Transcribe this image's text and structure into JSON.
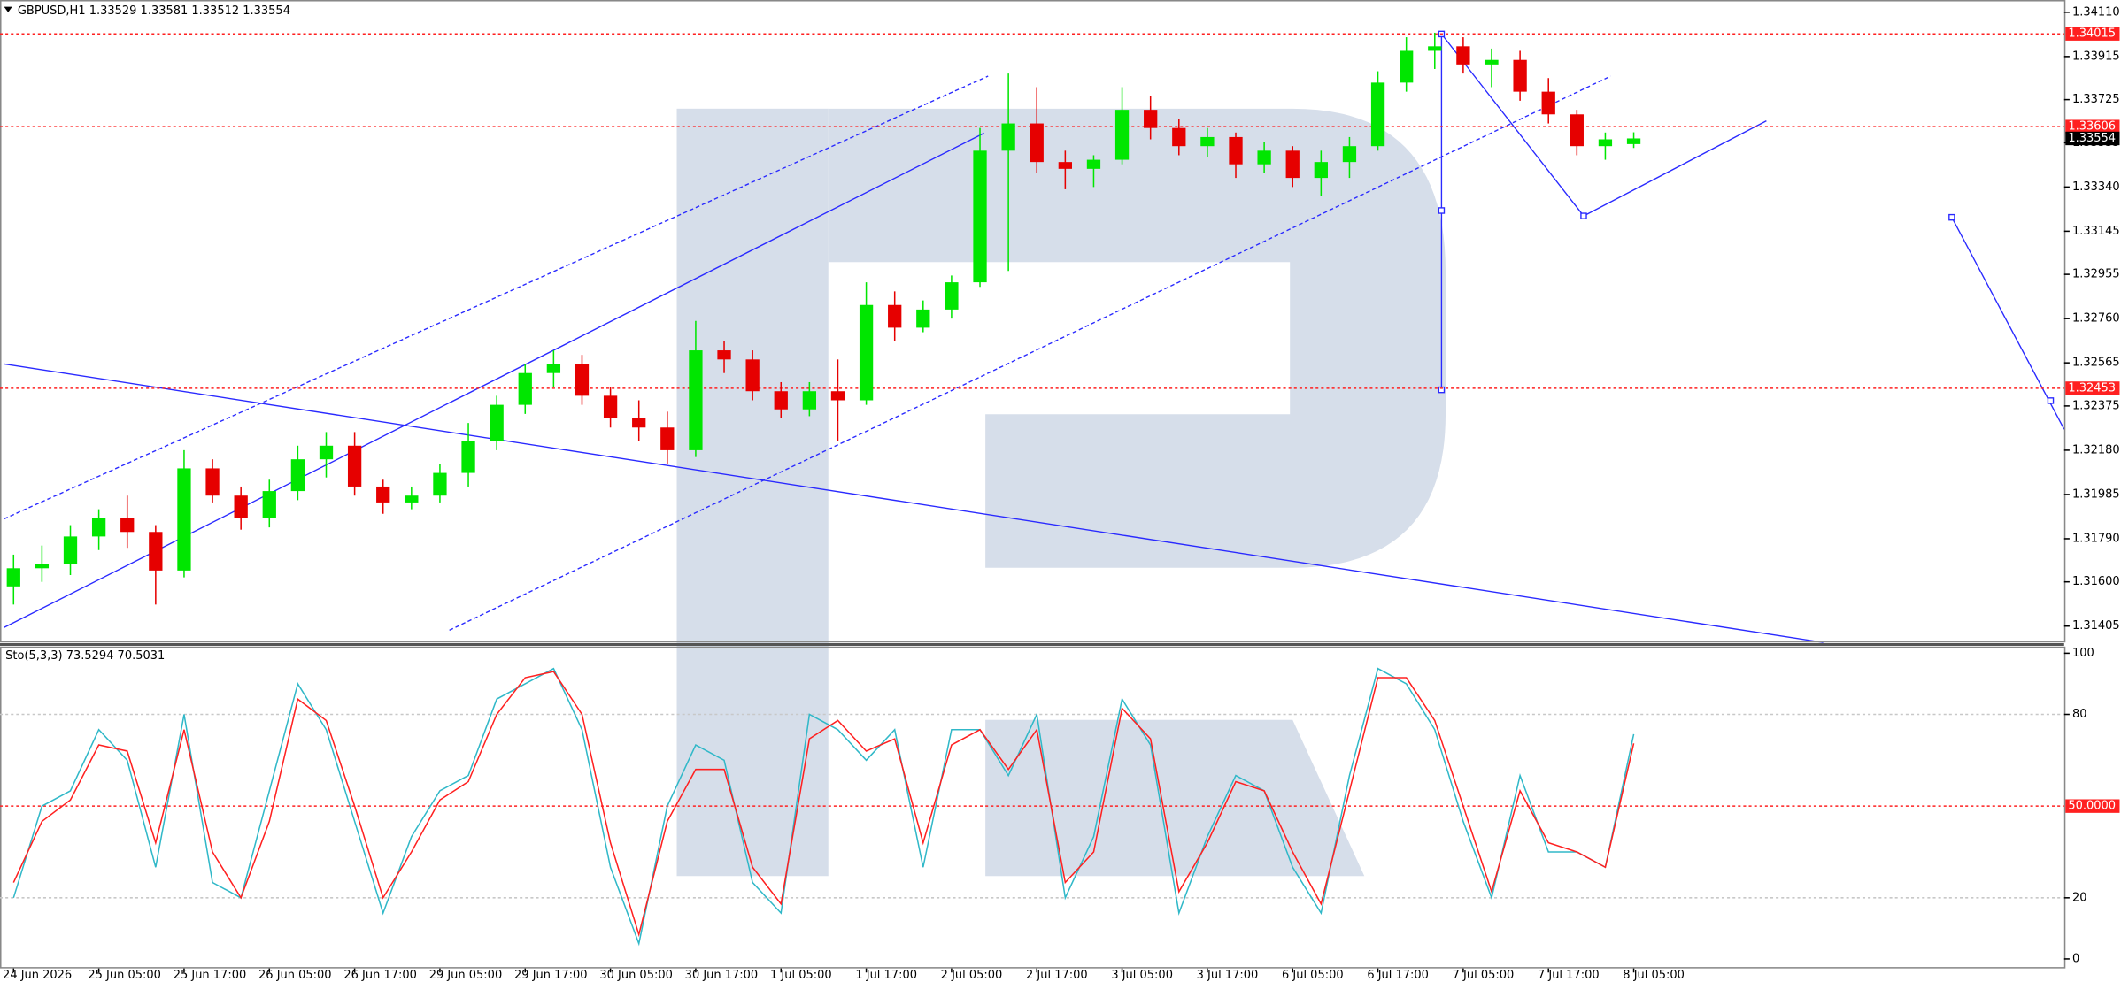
{
  "chart_data": [
    {
      "type": "candlestick",
      "title": "GBPUSD,H1  1.33529 1.33581 1.33512 1.33554",
      "categories": [
        "24 Jun 2026",
        null,
        null,
        "25 Jun 05:00",
        null,
        null,
        "25 Jun 17:00",
        null,
        null,
        "26 Jun 05:00",
        null,
        null,
        "26 Jun 17:00",
        null,
        null,
        "29 Jun 05:00",
        null,
        null,
        "29 Jun 17:00",
        null,
        null,
        "30 Jun 05:00",
        null,
        null,
        "30 Jun 17:00",
        null,
        null,
        "1 Jul 05:00",
        null,
        null,
        "1 Jul 17:00",
        null,
        null,
        "2 Jul 05:00",
        null,
        null,
        "2 Jul 17:00",
        null,
        null,
        "3 Jul 05:00",
        null,
        null,
        "3 Jul 17:00",
        null,
        null,
        "6 Jul 05:00",
        null,
        null,
        "6 Jul 17:00",
        null,
        null,
        "7 Jul 05:00",
        null,
        null,
        "7 Jul 17:00",
        null,
        null,
        "8 Jul 05:00"
      ],
      "open": [
        1.3158,
        1.3166,
        1.3168,
        1.318,
        1.3188,
        1.3182,
        1.3165,
        1.321,
        1.3198,
        1.3188,
        1.32,
        1.3214,
        1.322,
        1.3202,
        1.3195,
        1.3198,
        1.3208,
        1.3222,
        1.3238,
        1.3252,
        1.3256,
        1.3242,
        1.3232,
        1.3228,
        1.3218,
        1.3262,
        1.3258,
        1.3244,
        1.3236,
        1.3244,
        1.324,
        1.3282,
        1.3272,
        1.328,
        1.3292,
        1.335,
        1.3362,
        1.3345,
        1.3342,
        1.3346,
        1.3368,
        1.336,
        1.3352,
        1.3356,
        1.3344,
        1.335,
        1.3338,
        1.3345,
        1.3352,
        1.338,
        1.3394,
        1.3396,
        1.3388,
        1.339,
        1.3376,
        1.3366,
        1.3352,
        1.33529
      ],
      "high": [
        1.3172,
        1.3176,
        1.3185,
        1.3192,
        1.3198,
        1.3185,
        1.3218,
        1.3214,
        1.3202,
        1.3205,
        1.322,
        1.3226,
        1.3226,
        1.3205,
        1.3202,
        1.3212,
        1.323,
        1.3242,
        1.3256,
        1.3262,
        1.326,
        1.3246,
        1.324,
        1.3235,
        1.3275,
        1.3266,
        1.3262,
        1.3248,
        1.3248,
        1.3258,
        1.3292,
        1.3288,
        1.3284,
        1.3295,
        1.336,
        1.3384,
        1.3378,
        1.335,
        1.3348,
        1.3378,
        1.3374,
        1.3364,
        1.336,
        1.3358,
        1.3354,
        1.3352,
        1.335,
        1.3356,
        1.3385,
        1.34,
        1.3402,
        1.34,
        1.3395,
        1.3394,
        1.3382,
        1.3368,
        1.3358,
        1.33581
      ],
      "low": [
        1.315,
        1.316,
        1.3163,
        1.3174,
        1.3175,
        1.315,
        1.3162,
        1.3195,
        1.3183,
        1.3184,
        1.3196,
        1.3206,
        1.3198,
        1.319,
        1.3192,
        1.3195,
        1.3202,
        1.3218,
        1.3234,
        1.3246,
        1.3238,
        1.3228,
        1.3222,
        1.3212,
        1.3215,
        1.3252,
        1.324,
        1.3232,
        1.3233,
        1.3222,
        1.3238,
        1.3266,
        1.327,
        1.3276,
        1.329,
        1.3297,
        1.334,
        1.3333,
        1.3334,
        1.3344,
        1.3355,
        1.3348,
        1.3347,
        1.3338,
        1.334,
        1.3334,
        1.333,
        1.3338,
        1.335,
        1.3376,
        1.3386,
        1.3384,
        1.3378,
        1.3372,
        1.3362,
        1.3348,
        1.3346,
        1.33512
      ],
      "close": [
        1.3166,
        1.3168,
        1.318,
        1.3188,
        1.3182,
        1.3165,
        1.321,
        1.3198,
        1.3188,
        1.32,
        1.3214,
        1.322,
        1.3202,
        1.3195,
        1.3198,
        1.3208,
        1.3222,
        1.3238,
        1.3252,
        1.3256,
        1.3242,
        1.3232,
        1.3228,
        1.3218,
        1.3262,
        1.3258,
        1.3244,
        1.3236,
        1.3244,
        1.324,
        1.3282,
        1.3272,
        1.328,
        1.3292,
        1.335,
        1.3362,
        1.3345,
        1.3342,
        1.3346,
        1.3368,
        1.336,
        1.3352,
        1.3356,
        1.3344,
        1.335,
        1.3338,
        1.3345,
        1.3352,
        1.338,
        1.3394,
        1.3396,
        1.3388,
        1.339,
        1.3376,
        1.3366,
        1.3352,
        1.3355,
        1.33554
      ],
      "up_color": "#00e600",
      "down_color": "#e60000",
      "ylim": [
        1.31333,
        1.34164
      ],
      "yticks": [
        {
          "value": 1.3411,
          "label": "1.34110"
        },
        1.33915,
        1.33725,
        1.33535,
        {
          "value": 1.3334,
          "label": "1.33340"
        },
        1.33145,
        1.32955,
        {
          "value": 1.3276,
          "label": "1.32760"
        },
        1.32565,
        1.32375,
        {
          "value": 1.3218,
          "label": "1.32180"
        },
        1.31985,
        {
          "value": 1.3179,
          "label": "1.31790"
        },
        {
          "value": 1.316,
          "label": "1.31600"
        },
        1.31405
      ],
      "levels": [
        1.34015,
        1.33606,
        1.32453
      ],
      "level_color": "#ff2020",
      "last_price": 1.33554
    },
    {
      "type": "line",
      "title": "Sto(5,3,3) 73.5294 70.5031",
      "series": [
        {
          "color": "#30b8c8",
          "values": [
            20,
            50,
            55,
            75,
            65,
            30,
            80,
            25,
            20,
            55,
            90,
            75,
            45,
            15,
            40,
            55,
            60,
            85,
            90,
            95,
            75,
            30,
            5,
            50,
            70,
            65,
            25,
            15,
            80,
            75,
            65,
            75,
            30,
            75,
            75,
            60,
            80,
            20,
            40,
            85,
            70,
            15,
            40,
            60,
            55,
            30,
            15,
            60,
            95,
            90,
            75,
            45,
            20,
            60,
            35,
            35,
            30,
            73.5294
          ]
        },
        {
          "color": "#ff2020",
          "values": [
            25,
            45,
            52,
            70,
            68,
            38,
            75,
            35,
            20,
            45,
            85,
            78,
            50,
            20,
            35,
            52,
            58,
            80,
            92,
            94,
            80,
            38,
            8,
            45,
            62,
            62,
            30,
            18,
            72,
            78,
            68,
            72,
            38,
            70,
            75,
            62,
            75,
            25,
            35,
            82,
            72,
            22,
            38,
            58,
            55,
            35,
            18,
            55,
            92,
            92,
            78,
            50,
            22,
            55,
            38,
            35,
            30,
            70.5031
          ]
        }
      ],
      "ylim": [
        -3.1,
        102.2
      ],
      "yticks": [
        100,
        80,
        20,
        0
      ],
      "levels": [
        {
          "value": 50,
          "label": "50.0000"
        }
      ],
      "level_color": "#ff2020"
    }
  ]
}
